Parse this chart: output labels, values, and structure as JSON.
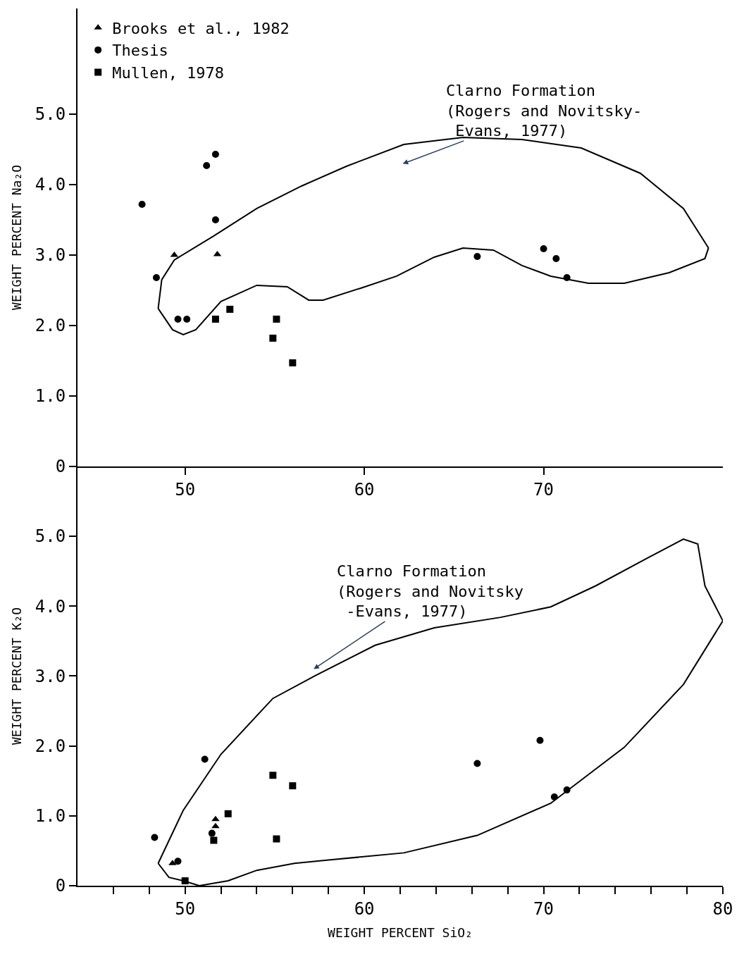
{
  "chart_data": [
    {
      "type": "scatter",
      "ylabel": "WEIGHT PERCENT Na₂O",
      "xlim": [
        44,
        80
      ],
      "xticks": [
        50,
        60,
        70
      ],
      "ylim": [
        0,
        6.5
      ],
      "yticks": [
        0,
        {
          "value": 1,
          "label": "1.0"
        },
        {
          "value": 2,
          "label": "2.0"
        },
        {
          "value": 3,
          "label": "3.0"
        },
        {
          "value": 4,
          "label": "4.0"
        },
        {
          "value": 5,
          "label": "5.0"
        }
      ],
      "grid": false,
      "legend": "top left",
      "annotations": [
        "Clarno Formation\n(Rogers and Novitsky-\n Evans, 1977)"
      ],
      "series": [
        {
          "name": "Brooks et al., 1982",
          "color": "#000000",
          "marker": "triangle",
          "x": [
            49.4,
            51.8
          ],
          "values": [
            3.0,
            3.01
          ]
        },
        {
          "name": "Thesis",
          "color": "#000000",
          "marker": "circle",
          "x": [
            47.6,
            48.4,
            49.6,
            50.1,
            51.2,
            51.7,
            51.7,
            66.3,
            70.0,
            70.7,
            71.3
          ],
          "values": [
            3.72,
            2.68,
            2.09,
            2.09,
            4.27,
            4.43,
            3.5,
            2.98,
            3.09,
            2.95,
            2.68
          ]
        },
        {
          "name": "Mullen, 1978",
          "color": "#000000",
          "marker": "square",
          "x": [
            51.7,
            52.5,
            55.1,
            54.9,
            56.0
          ],
          "values": [
            2.09,
            2.23,
            2.09,
            1.82,
            1.47
          ]
        },
        {
          "type": "line",
          "color": "#000000",
          "marker": "none",
          "x": [
            48.5,
            48.7,
            49.4,
            51.6,
            54.0,
            56.5,
            59.0,
            62.2,
            65.5,
            68.8,
            72.1,
            75.4,
            77.8,
            79.2
          ],
          "values": [
            2.24,
            2.65,
            2.93,
            3.27,
            3.66,
            3.98,
            4.26,
            4.57,
            4.67,
            4.64,
            4.52,
            4.16,
            3.66,
            3.1
          ]
        },
        {
          "type": "line",
          "color": "#000000",
          "marker": "none",
          "x": [
            48.5,
            49.3,
            49.9,
            50.6,
            52.0,
            54.0,
            55.7,
            56.9,
            57.7,
            59.8,
            61.8,
            63.9,
            65.5,
            67.2,
            68.8,
            70.4,
            72.5,
            74.5,
            77.0,
            79.0,
            79.2
          ],
          "values": [
            2.24,
            1.94,
            1.87,
            1.94,
            2.34,
            2.57,
            2.55,
            2.36,
            2.36,
            2.53,
            2.7,
            2.97,
            3.1,
            3.07,
            2.85,
            2.7,
            2.6,
            2.6,
            2.75,
            2.95,
            3.1
          ]
        }
      ]
    },
    {
      "type": "scatter",
      "xlabel": "WEIGHT PERCENT SiO₂",
      "ylabel": "WEIGHT PERCENT K₂O",
      "xlim": [
        44,
        80
      ],
      "xticks": [
        {
          "value": 46,
          "label": null
        },
        {
          "value": 48,
          "label": null
        },
        50,
        {
          "value": 52,
          "label": null
        },
        {
          "value": 54,
          "label": null
        },
        {
          "value": 56,
          "label": null
        },
        {
          "value": 58,
          "label": null
        },
        60,
        {
          "value": 62,
          "label": null
        },
        {
          "value": 64,
          "label": null
        },
        {
          "value": 66,
          "label": null
        },
        {
          "value": 68,
          "label": null
        },
        70,
        {
          "value": 72,
          "label": null
        },
        {
          "value": 74,
          "label": null
        },
        {
          "value": 76,
          "label": null
        },
        {
          "value": 78,
          "label": null
        },
        80
      ],
      "ylim": [
        0,
        6.0
      ],
      "yticks": [
        0,
        {
          "value": 1,
          "label": "1.0"
        },
        {
          "value": 2,
          "label": "2.0"
        },
        {
          "value": 3,
          "label": "3.0"
        },
        {
          "value": 4,
          "label": "4.0"
        },
        {
          "value": 5,
          "label": "5.0"
        }
      ],
      "grid": false,
      "legend": false,
      "annotations": [
        "Clarno Formation\n(Rogers and Novitsky\n -Evans, 1977)"
      ],
      "series": [
        {
          "color": "#000000",
          "marker": "triangle",
          "x": [
            49.3,
            51.7,
            51.7
          ],
          "values": [
            0.32,
            0.95,
            0.85
          ]
        },
        {
          "color": "#000000",
          "marker": "circle",
          "x": [
            48.3,
            49.6,
            51.1,
            51.5,
            66.3,
            69.8,
            70.6,
            71.3
          ],
          "values": [
            0.69,
            0.35,
            1.81,
            0.75,
            1.75,
            2.08,
            1.27,
            1.37
          ]
        },
        {
          "color": "#000000",
          "marker": "square",
          "x": [
            50.0,
            51.6,
            52.4,
            54.9,
            55.1,
            56.0
          ],
          "values": [
            0.07,
            0.65,
            1.03,
            1.58,
            0.67,
            1.43
          ]
        },
        {
          "type": "line",
          "color": "#000000",
          "marker": "none",
          "x": [
            48.5,
            49.9,
            52.0,
            54.9,
            57.3,
            60.6,
            63.9,
            67.6,
            70.4,
            72.9,
            75.8,
            77.8,
            78.6,
            79.0,
            80.0
          ],
          "values": [
            0.32,
            1.08,
            1.88,
            2.68,
            3.01,
            3.44,
            3.69,
            3.84,
            3.99,
            4.29,
            4.69,
            4.96,
            4.89,
            4.29,
            3.79
          ]
        },
        {
          "type": "line",
          "color": "#000000",
          "marker": "none",
          "x": [
            48.5,
            49.1,
            49.9,
            50.8,
            52.4,
            54.0,
            56.1,
            58.1,
            62.2,
            66.3,
            70.4,
            74.5,
            77.8,
            80.0
          ],
          "values": [
            0.32,
            0.12,
            0.07,
            0.0,
            0.07,
            0.22,
            0.32,
            0.37,
            0.47,
            0.72,
            1.18,
            1.98,
            2.88,
            3.79
          ]
        }
      ]
    }
  ]
}
